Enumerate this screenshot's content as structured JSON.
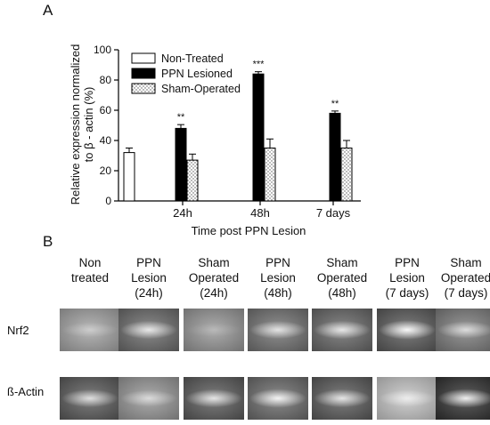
{
  "panels": {
    "a_label": "A",
    "b_label": "B"
  },
  "chart_data": {
    "type": "bar",
    "ylabel_lines": [
      "Relative expression normalized",
      "to β - actin (%)"
    ],
    "xlabel": "Time post PPN Lesion",
    "ylim": [
      0,
      100
    ],
    "yticks": [
      0,
      20,
      40,
      60,
      80,
      100
    ],
    "categories": [
      "24h",
      "48h",
      "7 days"
    ],
    "series": [
      {
        "name": "Non-Treated",
        "fill": "#ffffff",
        "pattern": "none",
        "values": [
          32,
          null,
          null
        ],
        "errors": [
          3,
          null,
          null
        ],
        "sig": [
          "",
          "",
          ""
        ]
      },
      {
        "name": "PPN Lesioned",
        "fill": "#000000",
        "pattern": "none",
        "values": [
          48,
          84,
          58
        ],
        "errors": [
          2.5,
          1.5,
          1.5
        ],
        "sig": [
          "**",
          "***",
          "**"
        ]
      },
      {
        "name": "Sham-Operated",
        "fill": "#ffffff",
        "pattern": "dots",
        "values": [
          27,
          35,
          35
        ],
        "errors": [
          4,
          6,
          5
        ],
        "sig": [
          "",
          "",
          ""
        ]
      }
    ],
    "legend_position": "top-left",
    "grid": false
  },
  "gel": {
    "columns": [
      "Non\ntreated",
      "PPN\nLesion\n(24h)",
      "Sham\nOperated\n(24h)",
      "PPN\nLesion\n(48h)",
      "Sham\nOperated\n(48h)",
      "PPN\nLesion\n(7 days)",
      "Sham\nOperated\n(7 days)"
    ],
    "rows": [
      {
        "label": "Nrf2",
        "band_intensity": [
          0.3,
          0.8,
          0.15,
          0.75,
          0.8,
          0.95,
          0.65
        ],
        "background_gray": [
          0.62,
          0.45,
          0.58,
          0.47,
          0.44,
          0.4,
          0.5
        ]
      },
      {
        "label": "ß-Actin",
        "band_intensity": [
          0.75,
          0.55,
          0.8,
          0.9,
          0.8,
          0.6,
          0.9
        ],
        "background_gray": [
          0.4,
          0.58,
          0.4,
          0.45,
          0.4,
          0.72,
          0.28
        ]
      }
    ]
  }
}
